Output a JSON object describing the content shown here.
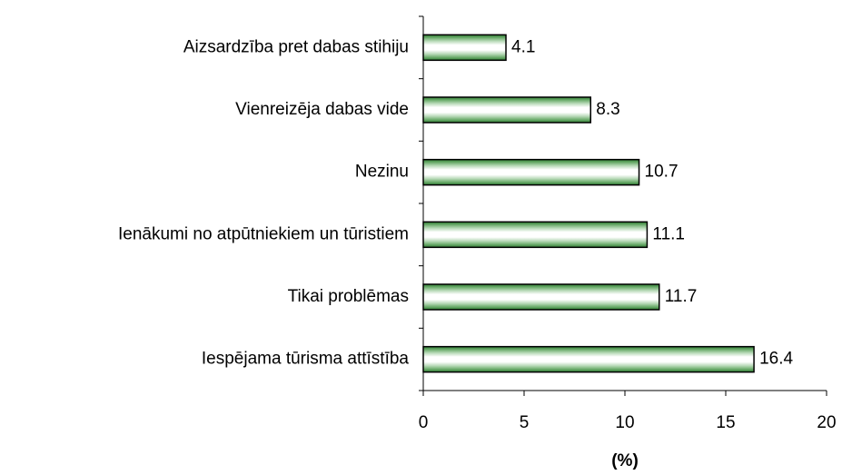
{
  "chart_data": {
    "type": "bar",
    "orientation": "horizontal",
    "categories": [
      "Aizsardzība pret dabas stihiju",
      "Vienreizēja dabas vide",
      "Nezinu",
      "Ienākumi no atpūtniekiem un tūristiem",
      "Tikai problēmas",
      "Iespējama tūrisma attīstība"
    ],
    "values": [
      4.1,
      8.3,
      10.7,
      11.1,
      11.7,
      16.4
    ],
    "value_labels": [
      "4.1",
      "8.3",
      "10.7",
      "11.1",
      "11.7",
      "16.4"
    ],
    "color": "#3f8f3f",
    "xlabel": "(%)",
    "xlim": [
      0,
      20
    ],
    "xticks": [
      0,
      5,
      10,
      15,
      20
    ],
    "grid": false
  }
}
